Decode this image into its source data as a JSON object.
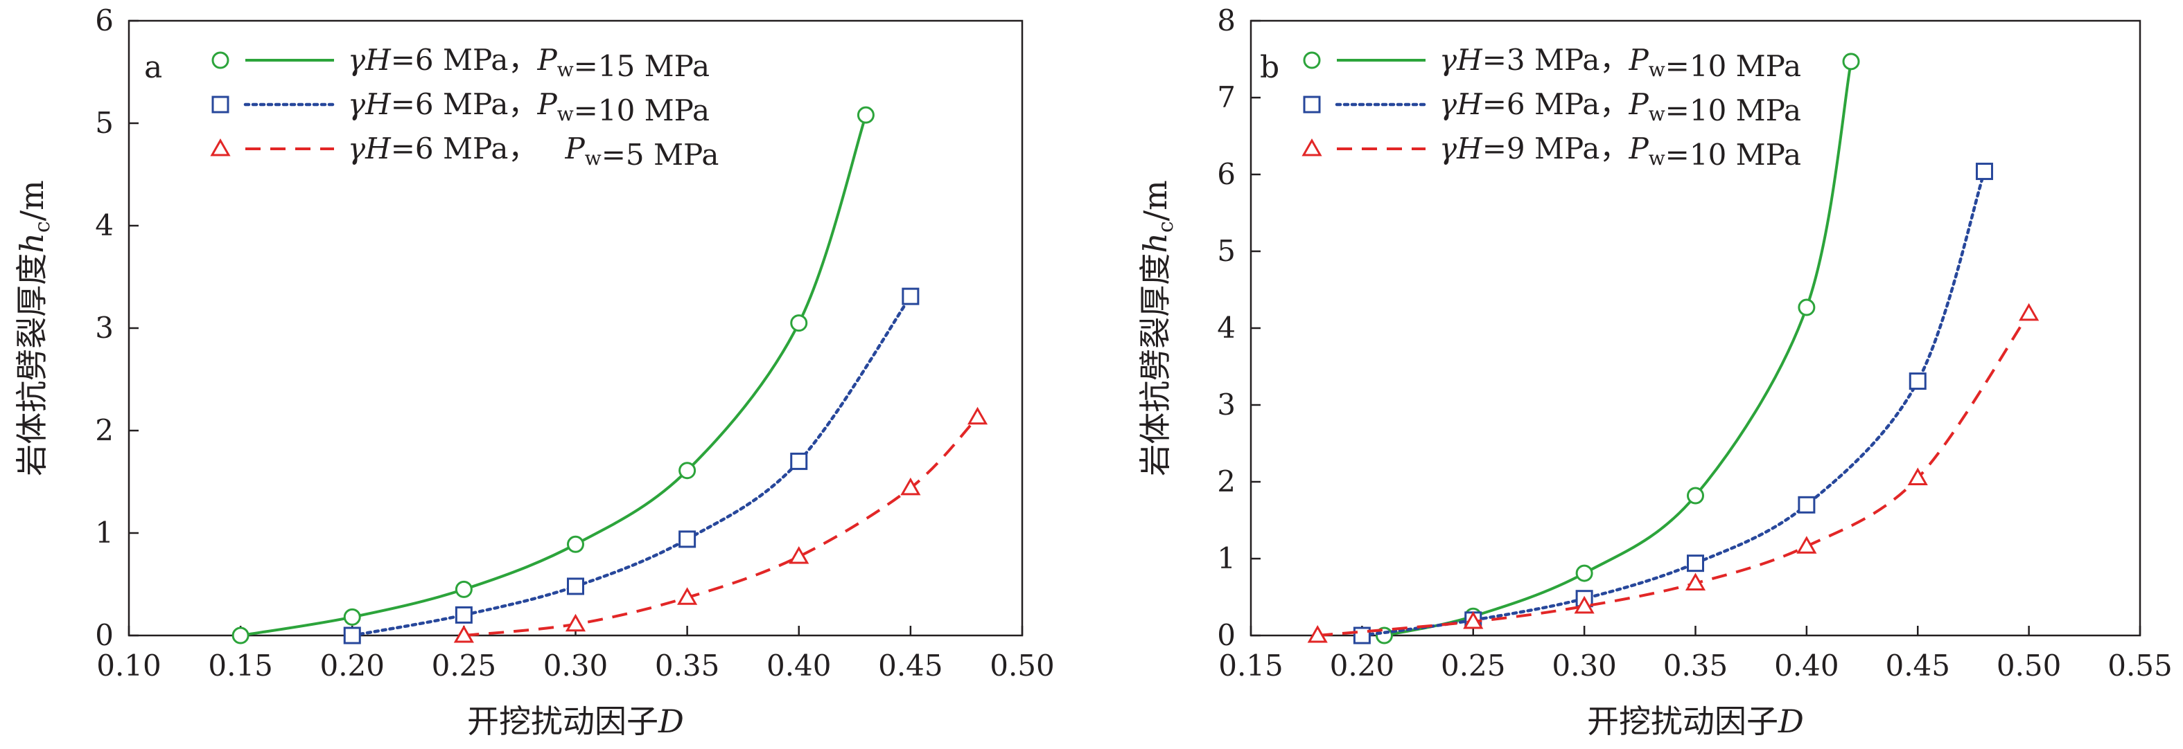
{
  "figure": {
    "title": "",
    "colors": {
      "green": "#2ca43b",
      "blue": "#27479b",
      "red": "#e22626",
      "axis": "#231f20"
    }
  },
  "chart_data": [
    {
      "type": "line",
      "panel_label": "a",
      "xlabel": "开挖扰动因子D",
      "ylabel": "岩体抗劈裂厚度h_c/m",
      "xlim": [
        0.1,
        0.5
      ],
      "ylim": [
        0,
        6
      ],
      "xticks": [
        "0.10",
        "0.15",
        "0.20",
        "0.25",
        "0.30",
        "0.35",
        "0.40",
        "0.45",
        "0.50"
      ],
      "yticks": [
        "0",
        "1",
        "2",
        "3",
        "4",
        "5",
        "6"
      ],
      "grid": false,
      "legend_position": "top-left",
      "series": [
        {
          "name": "γH=6 MPa，Pw=15 MPa",
          "color": "#2ca43b",
          "line_style": "solid",
          "marker": "circle",
          "x": [
            0.15,
            0.2,
            0.25,
            0.3,
            0.35,
            0.4,
            0.43
          ],
          "y": [
            0.0,
            0.18,
            0.45,
            0.89,
            1.61,
            3.05,
            5.08
          ]
        },
        {
          "name": "γH=6 MPa，Pw=10 MPa",
          "color": "#27479b",
          "line_style": "dotted",
          "marker": "square",
          "x": [
            0.2,
            0.25,
            0.3,
            0.35,
            0.4,
            0.45
          ],
          "y": [
            0.0,
            0.2,
            0.48,
            0.94,
            1.7,
            3.31
          ]
        },
        {
          "name": "γH=6 MPa，   Pw=5 MPa",
          "color": "#e22626",
          "line_style": "dashed",
          "marker": "triangle",
          "x": [
            0.25,
            0.3,
            0.35,
            0.4,
            0.45,
            0.48
          ],
          "y": [
            0.0,
            0.11,
            0.37,
            0.77,
            1.44,
            2.13
          ]
        }
      ]
    },
    {
      "type": "line",
      "panel_label": "b",
      "xlabel": "开挖扰动因子D",
      "ylabel": "岩体抗劈裂厚度h_c/m",
      "xlim": [
        0.15,
        0.55
      ],
      "ylim": [
        0,
        8
      ],
      "xticks": [
        "0.15",
        "0.20",
        "0.25",
        "0.30",
        "0.35",
        "0.40",
        "0.45",
        "0.50",
        "0.55"
      ],
      "yticks": [
        "0",
        "1",
        "2",
        "3",
        "4",
        "5",
        "6",
        "7",
        "8"
      ],
      "grid": false,
      "legend_position": "top-left",
      "series": [
        {
          "name": "γH=3 MPa，Pw=10 MPa",
          "color": "#2ca43b",
          "line_style": "solid",
          "marker": "circle",
          "x": [
            0.21,
            0.25,
            0.3,
            0.35,
            0.4,
            0.42
          ],
          "y": [
            0.0,
            0.25,
            0.81,
            1.82,
            4.27,
            7.47
          ]
        },
        {
          "name": "γH=6 MPa，Pw=10 MPa",
          "color": "#27479b",
          "line_style": "dotted",
          "marker": "square",
          "x": [
            0.2,
            0.25,
            0.3,
            0.35,
            0.4,
            0.45,
            0.48
          ],
          "y": [
            0.0,
            0.2,
            0.48,
            0.94,
            1.7,
            3.31,
            6.04
          ]
        },
        {
          "name": "γH=9 MPa，Pw=10 MPa",
          "color": "#e22626",
          "line_style": "dashed",
          "marker": "triangle",
          "x": [
            0.18,
            0.25,
            0.3,
            0.35,
            0.4,
            0.45,
            0.5
          ],
          "y": [
            0.0,
            0.18,
            0.38,
            0.68,
            1.16,
            2.05,
            4.19
          ]
        }
      ]
    }
  ]
}
